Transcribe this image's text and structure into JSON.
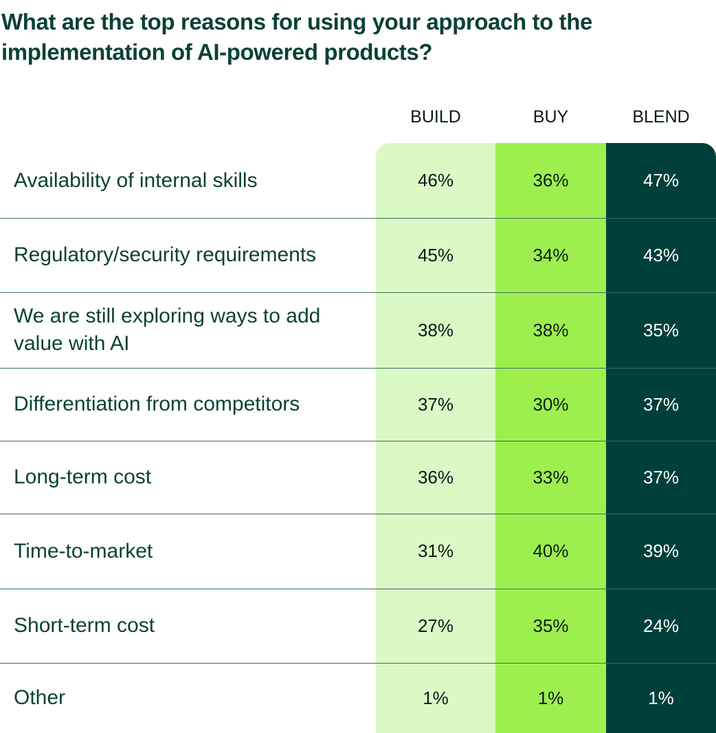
{
  "chart_data": {
    "type": "table",
    "title": "What are the top reasons for using your approach to the implementation of AI-powered products?",
    "columns": [
      "BUILD",
      "BUY",
      "BLEND"
    ],
    "column_colors": [
      "#dbf9c5",
      "#9def4e",
      "#00403a"
    ],
    "rows": [
      {
        "label": "Availability of internal skills",
        "values": [
          "46%",
          "36%",
          "47%"
        ]
      },
      {
        "label": "Regulatory/security requirements",
        "values": [
          "45%",
          "34%",
          "43%"
        ]
      },
      {
        "label": "We are still exploring ways to add value with AI",
        "values": [
          "38%",
          "38%",
          "35%"
        ]
      },
      {
        "label": "Differentiation from competitors",
        "values": [
          "37%",
          "30%",
          "37%"
        ]
      },
      {
        "label": "Long-term cost",
        "values": [
          "36%",
          "33%",
          "37%"
        ]
      },
      {
        "label": "Time-to-market",
        "values": [
          "31%",
          "40%",
          "39%"
        ]
      },
      {
        "label": "Short-term cost",
        "values": [
          "27%",
          "35%",
          "24%"
        ]
      },
      {
        "label": "Other",
        "values": [
          "1%",
          "1%",
          "1%"
        ]
      }
    ]
  }
}
